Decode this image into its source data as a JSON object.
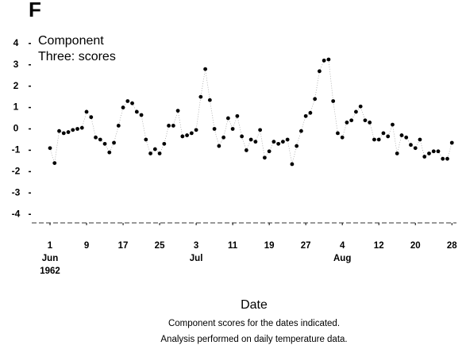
{
  "chart_data": {
    "type": "scatter",
    "panel_label": "F",
    "title": [
      "Component",
      "Three: scores"
    ],
    "xlabel": "Date",
    "note": [
      "Component scores for the dates indicated.",
      "Analysis performed on daily temperature data."
    ],
    "color": "#000000",
    "line_color": "#9a9a9a",
    "x": [
      "1962-06-01",
      "1962-06-02",
      "1962-06-03",
      "1962-06-04",
      "1962-06-05",
      "1962-06-06",
      "1962-06-07",
      "1962-06-08",
      "1962-06-09",
      "1962-06-10",
      "1962-06-11",
      "1962-06-12",
      "1962-06-13",
      "1962-06-14",
      "1962-06-15",
      "1962-06-16",
      "1962-06-17",
      "1962-06-18",
      "1962-06-19",
      "1962-06-20",
      "1962-06-21",
      "1962-06-22",
      "1962-06-23",
      "1962-06-24",
      "1962-06-25",
      "1962-06-26",
      "1962-06-27",
      "1962-06-28",
      "1962-06-29",
      "1962-06-30",
      "1962-07-01",
      "1962-07-02",
      "1962-07-03",
      "1962-07-04",
      "1962-07-05",
      "1962-07-06",
      "1962-07-07",
      "1962-07-08",
      "1962-07-09",
      "1962-07-10",
      "1962-07-11",
      "1962-07-12",
      "1962-07-13",
      "1962-07-14",
      "1962-07-15",
      "1962-07-16",
      "1962-07-17",
      "1962-07-18",
      "1962-07-19",
      "1962-07-20",
      "1962-07-21",
      "1962-07-22",
      "1962-07-23",
      "1962-07-24",
      "1962-07-25",
      "1962-07-26",
      "1962-07-27",
      "1962-07-28",
      "1962-07-29",
      "1962-07-30",
      "1962-07-31",
      "1962-08-01",
      "1962-08-02",
      "1962-08-03",
      "1962-08-04",
      "1962-08-05",
      "1962-08-06",
      "1962-08-07",
      "1962-08-08",
      "1962-08-09",
      "1962-08-10",
      "1962-08-11",
      "1962-08-12",
      "1962-08-13",
      "1962-08-14",
      "1962-08-15",
      "1962-08-16",
      "1962-08-17",
      "1962-08-18",
      "1962-08-19",
      "1962-08-20",
      "1962-08-21",
      "1962-08-22",
      "1962-08-23",
      "1962-08-24",
      "1962-08-25",
      "1962-08-26",
      "1962-08-27",
      "1962-08-28"
    ],
    "values": [
      -0.9,
      -1.6,
      -0.1,
      -0.2,
      -0.15,
      -0.05,
      0.0,
      0.05,
      0.8,
      0.55,
      -0.4,
      -0.5,
      -0.7,
      -1.1,
      -0.65,
      0.15,
      1.0,
      1.3,
      1.2,
      0.8,
      0.65,
      -0.5,
      -1.15,
      -0.95,
      -1.15,
      -0.7,
      0.15,
      0.15,
      0.85,
      -0.35,
      -0.3,
      -0.2,
      -0.05,
      1.5,
      2.8,
      1.35,
      0.0,
      -0.8,
      -0.4,
      0.5,
      0.0,
      0.6,
      -0.35,
      -1.0,
      -0.5,
      -0.6,
      -0.05,
      -1.35,
      -1.05,
      -0.6,
      -0.7,
      -0.6,
      -0.5,
      -1.65,
      -0.8,
      -0.1,
      0.6,
      0.75,
      1.4,
      2.7,
      3.2,
      3.25,
      1.3,
      -0.2,
      -0.4,
      0.3,
      0.4,
      0.8,
      1.05,
      0.4,
      0.3,
      -0.5,
      -0.5,
      -0.2,
      -0.35,
      0.2,
      -1.15,
      -0.3,
      -0.4,
      -0.75,
      -0.9,
      -0.5,
      -1.3,
      -1.15,
      -1.05,
      -1.05,
      -1.4,
      -1.4,
      -0.65
    ],
    "xlim": [
      "1962-05-28",
      "1962-08-29"
    ],
    "xticks": [
      {
        "value": "1962-06-01",
        "label": [
          "1",
          "Jun",
          "1962"
        ]
      },
      {
        "value": "1962-06-09",
        "label": [
          "9"
        ]
      },
      {
        "value": "1962-06-17",
        "label": [
          "17"
        ]
      },
      {
        "value": "1962-06-25",
        "label": [
          "25"
        ]
      },
      {
        "value": "1962-07-03",
        "label": [
          "3",
          "Jul"
        ]
      },
      {
        "value": "1962-07-11",
        "label": [
          "11"
        ]
      },
      {
        "value": "1962-07-19",
        "label": [
          "19"
        ]
      },
      {
        "value": "1962-07-27",
        "label": [
          "27"
        ]
      },
      {
        "value": "1962-08-04",
        "label": [
          "4",
          "Aug"
        ]
      },
      {
        "value": "1962-08-12",
        "label": [
          "12"
        ]
      },
      {
        "value": "1962-08-20",
        "label": [
          "20"
        ]
      },
      {
        "value": "1962-08-28",
        "label": [
          "28"
        ]
      }
    ],
    "ylim": [
      -4.4,
      4.4
    ],
    "yticks": [
      4,
      3,
      2,
      1,
      0,
      -1,
      -2,
      -3,
      -4
    ],
    "grid": false
  }
}
